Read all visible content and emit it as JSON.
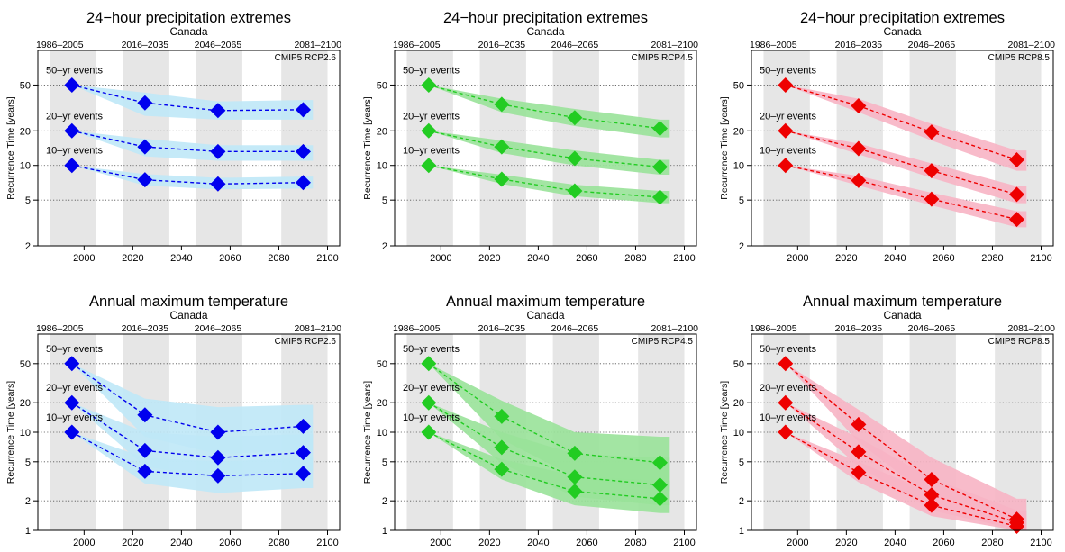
{
  "figure": {
    "ylabel": "Recurrence Time [years]",
    "period_labels": [
      "1986–2005",
      "2016–2035",
      "2046–2065",
      "2081–2100"
    ],
    "series_labels": [
      "50–yr events",
      "20–yr events",
      "10–yr events"
    ],
    "x_ticks": [
      "2000",
      "2020",
      "2040",
      "2060",
      "2080",
      "2100"
    ],
    "colors": {
      "rcp26": {
        "marker": "#0000ee",
        "band": "#bfe8f7"
      },
      "rcp45": {
        "marker": "#22cc22",
        "band": "#99e299"
      },
      "rcp85": {
        "marker": "#ee0000",
        "band": "#f7b4c4"
      },
      "period_shade": "#e6e6e6"
    }
  },
  "chart_data": [
    {
      "type": "line",
      "title": "24−hour precipitation extremes",
      "subtitle": "Canada",
      "scenario": "CMIP5 RCP2.6",
      "color": "rcp26",
      "x": [
        1995,
        2025,
        2055,
        2090
      ],
      "xlim": [
        1981,
        2105
      ],
      "y_scale": "log",
      "ylim": [
        2,
        100
      ],
      "y_ticks": [
        2,
        5,
        10,
        20,
        50
      ],
      "series": [
        {
          "name": "50–yr events",
          "values": [
            50,
            35,
            30,
            30.5
          ],
          "low": [
            50,
            27,
            25,
            25
          ],
          "high": [
            50,
            43,
            36,
            37
          ]
        },
        {
          "name": "20–yr events",
          "values": [
            20,
            14.5,
            13.2,
            13.2
          ],
          "low": [
            20,
            12,
            11,
            11
          ],
          "high": [
            20,
            17,
            15,
            15
          ]
        },
        {
          "name": "10–yr events",
          "values": [
            10,
            7.5,
            6.9,
            7.1
          ],
          "low": [
            10,
            6.7,
            6.2,
            6.3
          ],
          "high": [
            10,
            8.4,
            7.8,
            8
          ]
        }
      ]
    },
    {
      "type": "line",
      "title": "24−hour precipitation extremes",
      "subtitle": "Canada",
      "scenario": "CMIP5 RCP4.5",
      "color": "rcp45",
      "x": [
        1995,
        2025,
        2055,
        2090
      ],
      "xlim": [
        1981,
        2105
      ],
      "y_scale": "log",
      "ylim": [
        2,
        100
      ],
      "y_ticks": [
        2,
        5,
        10,
        20,
        50
      ],
      "series": [
        {
          "name": "50–yr events",
          "values": [
            50,
            34,
            26,
            21
          ],
          "low": [
            50,
            29,
            22,
            17.5
          ],
          "high": [
            50,
            38,
            31,
            25
          ]
        },
        {
          "name": "20–yr events",
          "values": [
            20,
            14.5,
            11.5,
            9.7
          ],
          "low": [
            20,
            12.8,
            10,
            8.3
          ],
          "high": [
            20,
            16.5,
            13.5,
            11.2
          ]
        },
        {
          "name": "10–yr events",
          "values": [
            10,
            7.6,
            6,
            5.3
          ],
          "low": [
            10,
            6.9,
            5.4,
            4.7
          ],
          "high": [
            10,
            8.3,
            6.8,
            6
          ]
        }
      ]
    },
    {
      "type": "line",
      "title": "24−hour precipitation extremes",
      "subtitle": "Canada",
      "scenario": "CMIP5 RCP8.5",
      "color": "rcp85",
      "x": [
        1995,
        2025,
        2055,
        2090
      ],
      "xlim": [
        1981,
        2105
      ],
      "y_scale": "log",
      "ylim": [
        2,
        100
      ],
      "y_ticks": [
        2,
        5,
        10,
        20,
        50
      ],
      "series": [
        {
          "name": "50–yr events",
          "values": [
            50,
            33,
            19.5,
            11.2
          ],
          "low": [
            50,
            29,
            16.5,
            9
          ],
          "high": [
            50,
            38,
            23,
            13.5
          ]
        },
        {
          "name": "20–yr events",
          "values": [
            20,
            14,
            9,
            5.6
          ],
          "low": [
            20,
            12.5,
            7.8,
            4.7
          ],
          "high": [
            20,
            15.5,
            10.4,
            6.6
          ]
        },
        {
          "name": "10–yr events",
          "values": [
            10,
            7.4,
            5.1,
            3.4
          ],
          "low": [
            10,
            6.7,
            4.5,
            2.9
          ],
          "high": [
            10,
            8.1,
            5.8,
            4
          ]
        }
      ]
    },
    {
      "type": "line",
      "title": "Annual maximum temperature",
      "subtitle": "Canada",
      "scenario": "CMIP5 RCP2.6",
      "color": "rcp26",
      "x": [
        1995,
        2025,
        2055,
        2090
      ],
      "xlim": [
        1981,
        2105
      ],
      "y_scale": "log",
      "ylim": [
        1,
        100
      ],
      "y_ticks": [
        1,
        2,
        5,
        10,
        20,
        50
      ],
      "series": [
        {
          "name": "50–yr events",
          "values": [
            50,
            15,
            10,
            11.5
          ],
          "low": [
            50,
            9,
            6,
            6.5
          ],
          "high": [
            50,
            22,
            18,
            19
          ]
        },
        {
          "name": "20–yr events",
          "values": [
            20,
            6.5,
            5.5,
            6.2
          ],
          "low": [
            20,
            4.5,
            3.3,
            4
          ],
          "high": [
            20,
            10,
            9,
            9.5
          ]
        },
        {
          "name": "10–yr events",
          "values": [
            10,
            4,
            3.6,
            3.8
          ],
          "low": [
            10,
            3,
            2.4,
            2.7
          ],
          "high": [
            10,
            5.5,
            5,
            5.5
          ]
        }
      ]
    },
    {
      "type": "line",
      "title": "Annual maximum temperature",
      "subtitle": "Canada",
      "scenario": "CMIP5 RCP4.5",
      "color": "rcp45",
      "x": [
        1995,
        2025,
        2055,
        2090
      ],
      "xlim": [
        1981,
        2105
      ],
      "y_scale": "log",
      "ylim": [
        1,
        100
      ],
      "y_ticks": [
        1,
        2,
        5,
        10,
        20,
        50
      ],
      "series": [
        {
          "name": "50–yr events",
          "values": [
            50,
            14.5,
            6.1,
            4.9
          ],
          "low": [
            50,
            8.5,
            3.5,
            2.5
          ],
          "high": [
            50,
            21,
            10,
            9
          ]
        },
        {
          "name": "20–yr events",
          "values": [
            20,
            7,
            3.5,
            2.9
          ],
          "low": [
            20,
            4.8,
            2.2,
            1.8
          ],
          "high": [
            20,
            10,
            6,
            5.5
          ]
        },
        {
          "name": "10–yr events",
          "values": [
            10,
            4.2,
            2.5,
            2.1
          ],
          "low": [
            10,
            3.3,
            1.8,
            1.5
          ],
          "high": [
            10,
            5.3,
            3.6,
            3.2
          ]
        }
      ]
    },
    {
      "type": "line",
      "title": "Annual maximum temperature",
      "subtitle": "Canada",
      "scenario": "CMIP5 RCP8.5",
      "color": "rcp85",
      "x": [
        1995,
        2025,
        2055,
        2090
      ],
      "xlim": [
        1981,
        2105
      ],
      "y_scale": "log",
      "ylim": [
        1,
        100
      ],
      "y_ticks": [
        1,
        2,
        5,
        10,
        20,
        50
      ],
      "series": [
        {
          "name": "50–yr events",
          "values": [
            50,
            12,
            3.3,
            1.3
          ],
          "low": [
            50,
            8,
            2.1,
            1.05
          ],
          "high": [
            50,
            17,
            5.5,
            2.1
          ]
        },
        {
          "name": "20–yr events",
          "values": [
            20,
            6.3,
            2.3,
            1.2
          ],
          "low": [
            20,
            4.5,
            1.6,
            1.02
          ],
          "high": [
            20,
            8.8,
            3.4,
            1.6
          ]
        },
        {
          "name": "10–yr events",
          "values": [
            10,
            3.9,
            1.8,
            1.1
          ],
          "low": [
            10,
            3.1,
            1.4,
            1.0
          ],
          "high": [
            10,
            5,
            2.4,
            1.35
          ]
        }
      ]
    }
  ]
}
